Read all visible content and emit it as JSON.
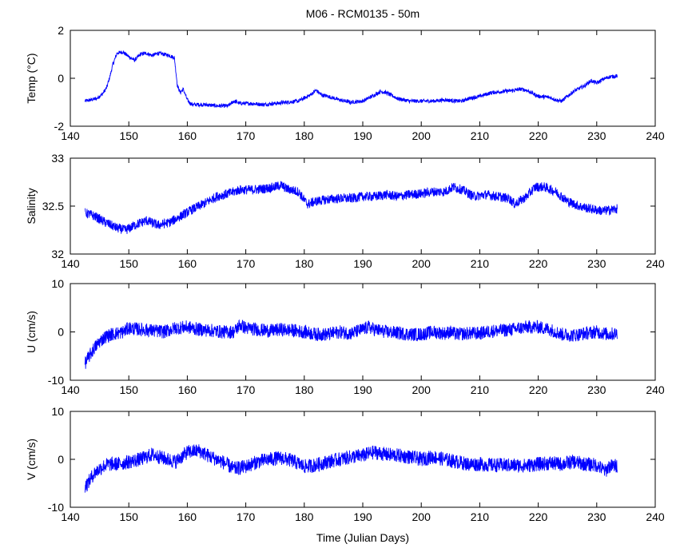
{
  "figure": {
    "title": "M06 - RCM0135 - 50m",
    "xlabel": "Time (Julian Days)"
  },
  "style": {
    "line_color": "#0000ff",
    "axis_color": "#000000",
    "background": "#ffffff"
  },
  "chart_data": [
    {
      "type": "line",
      "title": "M06 - RCM0135 - 50m",
      "xlabel": "",
      "ylabel": "Temp (°C)",
      "xlim": [
        140,
        240
      ],
      "ylim": [
        -2,
        2
      ],
      "xticks": [
        140,
        150,
        160,
        170,
        180,
        190,
        200,
        210,
        220,
        230,
        240
      ],
      "yticks": [
        -2,
        0,
        2
      ],
      "grid": false,
      "series": [
        {
          "noise": 0.08,
          "x": [
            142.5,
            143.5,
            144.5,
            145.5,
            146.2,
            146.8,
            147.3,
            148,
            149,
            150,
            151,
            152,
            153,
            154,
            155,
            156,
            157,
            157.8,
            158.3,
            158.8,
            159.3,
            160,
            160.5,
            161,
            163,
            165,
            167,
            168,
            169,
            171,
            173,
            175,
            177,
            179,
            181,
            182,
            183,
            184,
            186,
            188,
            190,
            192,
            193,
            194,
            196,
            198,
            200,
            202,
            204,
            206,
            207,
            208,
            210,
            212,
            214,
            216,
            217,
            218,
            220,
            222,
            223,
            224,
            225,
            226,
            228,
            229,
            230,
            231,
            232,
            233.5
          ],
          "y": [
            -0.95,
            -0.9,
            -0.85,
            -0.65,
            -0.4,
            0.1,
            0.6,
            1.05,
            1.1,
            0.9,
            0.75,
            1.0,
            1.05,
            0.95,
            1.05,
            1.0,
            0.95,
            0.85,
            -0.3,
            -0.6,
            -0.45,
            -0.9,
            -1.05,
            -1.1,
            -1.1,
            -1.15,
            -1.15,
            -0.95,
            -1.05,
            -1.05,
            -1.1,
            -1.05,
            -1.0,
            -0.95,
            -0.7,
            -0.5,
            -0.7,
            -0.75,
            -0.9,
            -1.0,
            -0.95,
            -0.7,
            -0.55,
            -0.6,
            -0.85,
            -0.95,
            -0.95,
            -0.95,
            -0.9,
            -0.95,
            -0.95,
            -0.85,
            -0.75,
            -0.6,
            -0.55,
            -0.5,
            -0.45,
            -0.5,
            -0.75,
            -0.8,
            -0.9,
            -0.95,
            -0.75,
            -0.55,
            -0.3,
            -0.1,
            -0.2,
            -0.05,
            0.05,
            0.1
          ]
        }
      ]
    },
    {
      "type": "line",
      "ylabel": "Salinity",
      "xlim": [
        140,
        240
      ],
      "ylim": [
        32,
        33
      ],
      "xticks": [
        140,
        150,
        160,
        170,
        180,
        190,
        200,
        210,
        220,
        230,
        240
      ],
      "yticks": [
        32,
        32.5,
        33
      ],
      "grid": false,
      "series": [
        {
          "noise": 0.05,
          "x": [
            142.5,
            144,
            146,
            148,
            149.5,
            151,
            153,
            155,
            157,
            159,
            161,
            163,
            165,
            167,
            169,
            171,
            173,
            175,
            176,
            177,
            179,
            180.5,
            182,
            184,
            186,
            188,
            190,
            192,
            194,
            196,
            198,
            200,
            202,
            204,
            205.5,
            207,
            209,
            211,
            213,
            215,
            216,
            218,
            219.5,
            221,
            223,
            225,
            227,
            229,
            231,
            233.5
          ],
          "y": [
            32.43,
            32.4,
            32.33,
            32.27,
            32.25,
            32.3,
            32.35,
            32.3,
            32.33,
            32.4,
            32.47,
            32.53,
            32.6,
            32.63,
            32.67,
            32.67,
            32.68,
            32.7,
            32.72,
            32.68,
            32.65,
            32.52,
            32.55,
            32.57,
            32.58,
            32.58,
            32.6,
            32.6,
            32.62,
            32.6,
            32.62,
            32.63,
            32.65,
            32.65,
            32.7,
            32.67,
            32.6,
            32.62,
            32.6,
            32.58,
            32.52,
            32.6,
            32.7,
            32.7,
            32.65,
            32.55,
            32.5,
            32.47,
            32.45,
            32.47
          ]
        }
      ]
    },
    {
      "type": "line",
      "ylabel": "U (cm/s)",
      "xlim": [
        140,
        240
      ],
      "ylim": [
        -10,
        10
      ],
      "xticks": [
        140,
        150,
        160,
        170,
        180,
        190,
        200,
        210,
        220,
        230,
        240
      ],
      "yticks": [
        -10,
        0,
        10
      ],
      "grid": false,
      "series": [
        {
          "noise": 1.4,
          "x": [
            142.5,
            143,
            144,
            145,
            146,
            147,
            148,
            149,
            150,
            152,
            154,
            156,
            158,
            160,
            162,
            164,
            166,
            168,
            169,
            170,
            172,
            174,
            176,
            178,
            180,
            182,
            184,
            186,
            188,
            190,
            191,
            192,
            194,
            196,
            198,
            200,
            202,
            204,
            205,
            206,
            208,
            210,
            212,
            214,
            216,
            218,
            220,
            222,
            224,
            226,
            228,
            230,
            232,
            233.5
          ],
          "y": [
            -6.5,
            -5.5,
            -3.5,
            -2,
            -1,
            -0.5,
            -0.3,
            0,
            0.8,
            0.5,
            0.3,
            0,
            0.8,
            1,
            0.5,
            0.3,
            0,
            0,
            1.5,
            0.8,
            0.5,
            0.2,
            0.5,
            0.3,
            0,
            -0.5,
            -0.5,
            0,
            -0.3,
            0.5,
            1,
            0.5,
            0,
            -0.2,
            -0.5,
            -0.5,
            0,
            -0.3,
            0,
            -0.5,
            -0.3,
            -0.3,
            0.2,
            0.3,
            0.6,
            1.0,
            1.0,
            0.5,
            -0.5,
            -0.7,
            -0.3,
            0,
            -0.5,
            -0.3
          ]
        }
      ]
    },
    {
      "type": "line",
      "ylabel": "V (cm/s)",
      "xlim": [
        140,
        240
      ],
      "ylim": [
        -10,
        10
      ],
      "xticks": [
        140,
        150,
        160,
        170,
        180,
        190,
        200,
        210,
        220,
        230,
        240
      ],
      "yticks": [
        -10,
        0,
        10
      ],
      "grid": false,
      "series": [
        {
          "noise": 1.5,
          "x": [
            142.5,
            143,
            144,
            145,
            146,
            147,
            148,
            149,
            150,
            152,
            154,
            156,
            158,
            160,
            162,
            164,
            166,
            168,
            170,
            172,
            174,
            176,
            178,
            180,
            182,
            184,
            186,
            188,
            190,
            192,
            194,
            196,
            198,
            200,
            202,
            204,
            206,
            208,
            210,
            212,
            214,
            216,
            218,
            220,
            222,
            224,
            226,
            228,
            230,
            231.5,
            232,
            233.5
          ],
          "y": [
            -5.5,
            -5,
            -3,
            -2,
            -1.2,
            -1,
            -1,
            -0.8,
            -0.5,
            0,
            1,
            0.2,
            -0.5,
            1.5,
            1.8,
            0.5,
            -0.5,
            -2,
            -1.5,
            -0.5,
            0,
            0.3,
            -0.3,
            -1.5,
            -1.2,
            -0.5,
            0,
            0.5,
            0.8,
            1.5,
            1.0,
            0.8,
            0.5,
            0,
            0.5,
            0,
            -0.5,
            -1,
            -1,
            -1.2,
            -1.2,
            -1.3,
            -1.3,
            -1,
            -0.8,
            -1,
            -0.5,
            -1,
            -1.2,
            -2.5,
            -1.5,
            -1.3
          ]
        }
      ]
    }
  ]
}
